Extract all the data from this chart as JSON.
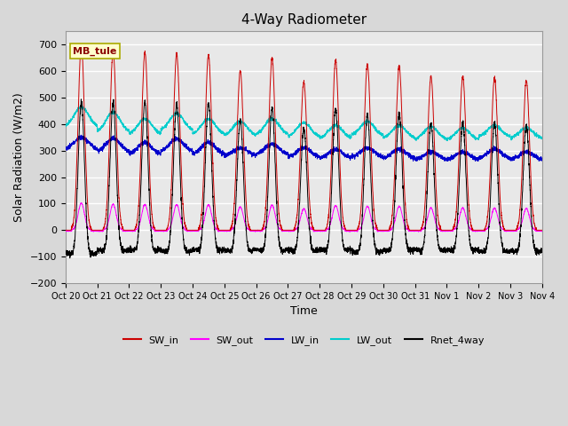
{
  "title": "4-Way Radiometer",
  "xlabel": "Time",
  "ylabel": "Solar Radiation (W/m2)",
  "ylim": [
    -200,
    750
  ],
  "yticks": [
    -200,
    -100,
    0,
    100,
    200,
    300,
    400,
    500,
    600,
    700
  ],
  "station_label": "MB_tule",
  "fig_facecolor": "#d8d8d8",
  "ax_facecolor": "#e8e8e8",
  "grid_color": "white",
  "n_days": 15,
  "x_tick_labels": [
    "Oct 20",
    "Oct 21",
    "Oct 22",
    "Oct 23",
    "Oct 24",
    "Oct 25",
    "Oct 26",
    "Oct 27",
    "Oct 28",
    "Oct 29",
    "Oct 30",
    "Oct 31",
    "Nov 1",
    "Nov 2",
    "Nov 3",
    "Nov 4"
  ],
  "colors": {
    "SW_in": "#cc0000",
    "SW_out": "#ff00ff",
    "LW_in": "#0000cc",
    "LW_out": "#00cccc",
    "Rnet_4way": "#000000"
  },
  "sw_in_peaks": [
    700,
    675,
    670,
    665,
    660,
    600,
    650,
    558,
    640,
    625,
    620,
    580,
    580,
    575,
    565
  ],
  "lw_out_night": [
    390,
    370,
    360,
    375,
    360,
    355,
    360,
    350,
    345,
    355,
    345,
    340,
    340,
    350,
    345
  ],
  "lw_out_day_bump": [
    75,
    75,
    60,
    65,
    60,
    55,
    60,
    55,
    50,
    55,
    50,
    50,
    45,
    45,
    40
  ],
  "lw_in_base": [
    305,
    295,
    285,
    295,
    285,
    280,
    285,
    275,
    270,
    275,
    270,
    265,
    265,
    270,
    265
  ],
  "lw_in_day_bump": [
    45,
    50,
    45,
    50,
    45,
    30,
    40,
    35,
    35,
    35,
    35,
    30,
    30,
    35,
    30
  ]
}
